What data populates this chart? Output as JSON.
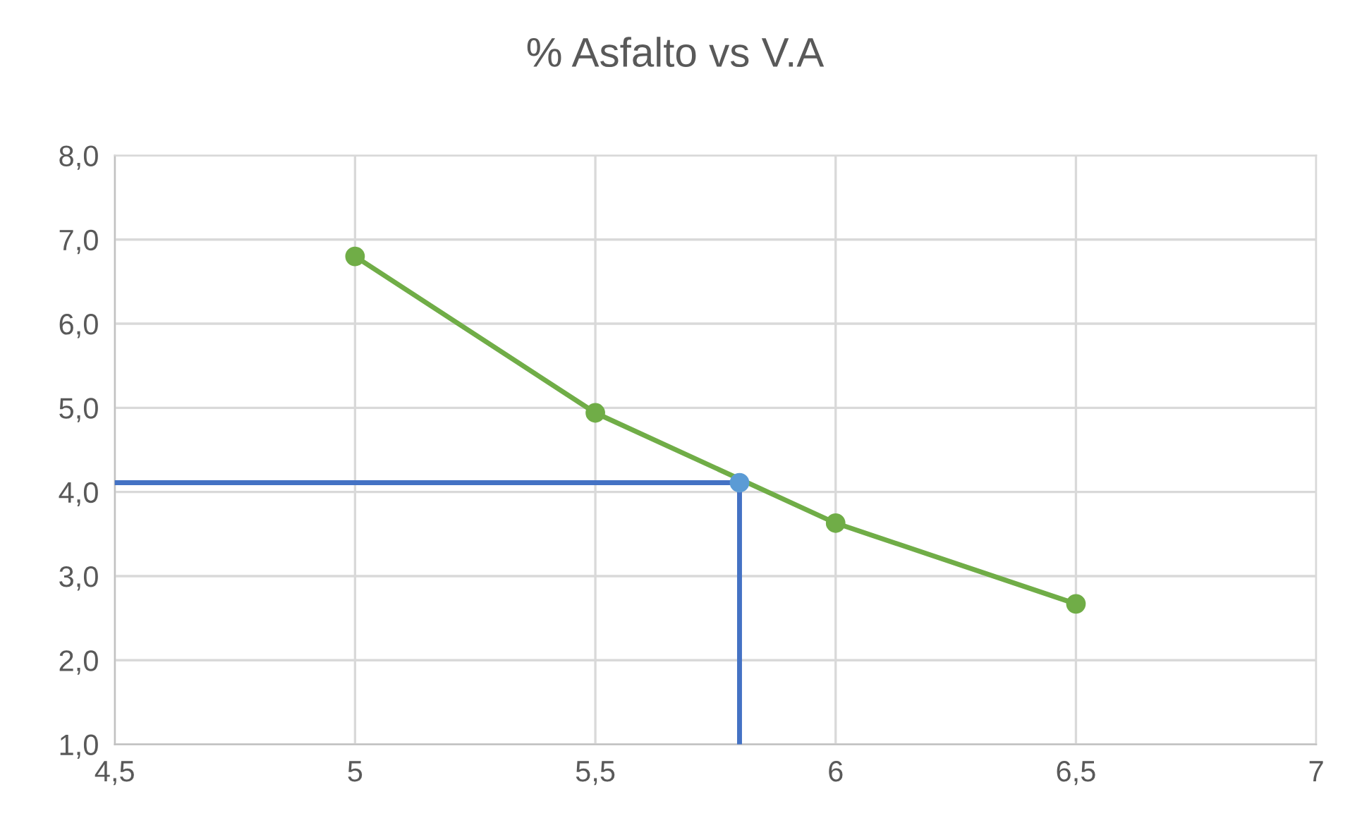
{
  "chart_data": {
    "type": "line",
    "title": "% Asfalto vs V.A",
    "series": [
      {
        "color": "#70ad47",
        "marker": "circle",
        "x": [
          5,
          5.5,
          6,
          6.5
        ],
        "values": [
          6.8,
          4.94,
          3.63,
          2.67
        ]
      },
      {
        "color": "#4472c4",
        "marker": "none",
        "x": [
          4.5,
          5.8
        ],
        "values": [
          4.11,
          4.11
        ]
      },
      {
        "color": "#4472c4",
        "marker": "none",
        "x": [
          5.8,
          5.8
        ],
        "values": [
          1.0,
          4.11
        ]
      },
      {
        "type": "scatter",
        "color": "#5b9bd5",
        "marker": "circle",
        "x": [
          5.8
        ],
        "values": [
          4.11
        ]
      }
    ],
    "xlim": [
      4.5,
      7
    ],
    "ylim": [
      1.0,
      8.0
    ],
    "xticks": [
      {
        "value": 4.5,
        "label": "4,5"
      },
      5,
      {
        "value": 5.5,
        "label": "5,5"
      },
      6,
      {
        "value": 6.5,
        "label": "6,5"
      },
      7
    ],
    "yticks": [
      {
        "value": 1,
        "label": "1,0"
      },
      {
        "value": 2,
        "label": "2,0"
      },
      {
        "value": 3,
        "label": "3,0"
      },
      {
        "value": 4,
        "label": "4,0"
      },
      {
        "value": 5,
        "label": "5,0"
      },
      {
        "value": 6,
        "label": "6,0"
      },
      {
        "value": 7,
        "label": "7,0"
      },
      {
        "value": 8,
        "label": "8,0"
      }
    ],
    "grid": true
  }
}
